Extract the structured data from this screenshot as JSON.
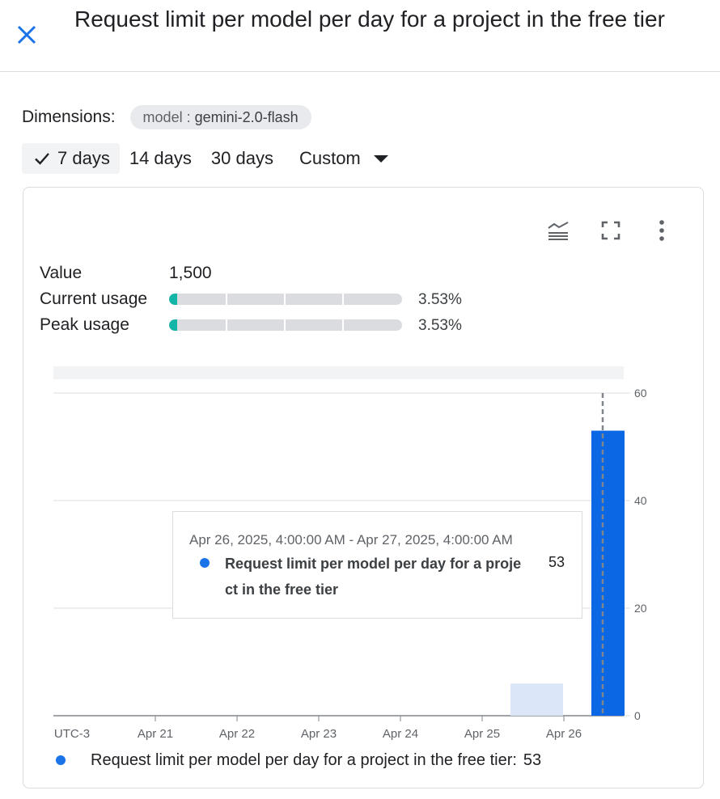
{
  "header": {
    "title": "Request limit per model per day for a project in the free tier",
    "close_icon": "close-icon"
  },
  "dimensions": {
    "label": "Dimensions:",
    "chip_key": "model",
    "chip_sep": " : ",
    "chip_value": "gemini-2.0-flash"
  },
  "ranges": {
    "items": [
      "7 days",
      "14 days",
      "30 days"
    ],
    "selected": "7 days",
    "custom_label": "Custom"
  },
  "toolbar": {
    "icons": [
      "legend-toggle-icon",
      "fullscreen-icon",
      "more-vert-icon"
    ]
  },
  "stats": {
    "value_label": "Value",
    "value": "1,500",
    "current_label": "Current usage",
    "current_pct": "3.53%",
    "current_fraction": 0.0353,
    "peak_label": "Peak usage",
    "peak_pct": "3.53%",
    "peak_fraction": 0.0353
  },
  "tooltip": {
    "time": "Apr 26, 2025, 4:00:00 AM - Apr 27, 2025, 4:00:00 AM",
    "series": "Request limit per model per day for a project in the free tier",
    "value": "53"
  },
  "legend": {
    "label": "Request limit per model per day for a project in the free tier:",
    "value": "53"
  },
  "colors": {
    "series": "#1a73e8",
    "bar": "#0b67e3",
    "bar_muted": "#dbe7f8",
    "usage_fill": "#12b5a6"
  },
  "chart_data": {
    "type": "bar",
    "x_labels": [
      "UTC-3",
      "Apr 21",
      "Apr 22",
      "Apr 23",
      "Apr 24",
      "Apr 25",
      "Apr 26"
    ],
    "y_ticks": [
      0,
      20,
      40,
      60
    ],
    "ylim": [
      0,
      60
    ],
    "series": [
      {
        "name": "Request limit per model per day for a project in the free tier",
        "x": [
          "Apr 25",
          "Apr 26"
        ],
        "values": [
          6,
          53
        ]
      }
    ],
    "highlight_x": "Apr 26",
    "grid": true
  }
}
